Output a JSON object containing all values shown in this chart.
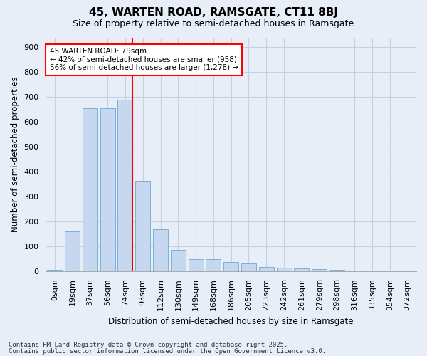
{
  "title": "45, WARTEN ROAD, RAMSGATE, CT11 8BJ",
  "subtitle": "Size of property relative to semi-detached houses in Ramsgate",
  "xlabel": "Distribution of semi-detached houses by size in Ramsgate",
  "ylabel": "Number of semi-detached properties",
  "bins": [
    "0sqm",
    "19sqm",
    "37sqm",
    "56sqm",
    "74sqm",
    "93sqm",
    "112sqm",
    "130sqm",
    "149sqm",
    "168sqm",
    "186sqm",
    "205sqm",
    "223sqm",
    "242sqm",
    "261sqm",
    "279sqm",
    "298sqm",
    "316sqm",
    "335sqm",
    "354sqm",
    "372sqm"
  ],
  "values": [
    8,
    160,
    655,
    655,
    690,
    365,
    170,
    88,
    50,
    50,
    38,
    32,
    17,
    14,
    12,
    10,
    8,
    3,
    0,
    0,
    0
  ],
  "bar_color": "#c5d8f0",
  "bar_edge_color": "#7ab0d8",
  "grid_color": "#c8d0e0",
  "background_color": "#e8eef8",
  "red_line_x": 4.42,
  "red_line_label": "45 WARTEN ROAD: 79sqm",
  "annotation_smaller": "← 42% of semi-detached houses are smaller (958)",
  "annotation_larger": "56% of semi-detached houses are larger (1,278) →",
  "footer1": "Contains HM Land Registry data © Crown copyright and database right 2025.",
  "footer2": "Contains public sector information licensed under the Open Government Licence v3.0.",
  "ylim": [
    0,
    940
  ],
  "yticks": [
    0,
    100,
    200,
    300,
    400,
    500,
    600,
    700,
    800,
    900
  ],
  "title_fontsize": 11,
  "subtitle_fontsize": 9,
  "axis_label_fontsize": 8.5,
  "tick_fontsize": 8,
  "footer_fontsize": 6.5
}
